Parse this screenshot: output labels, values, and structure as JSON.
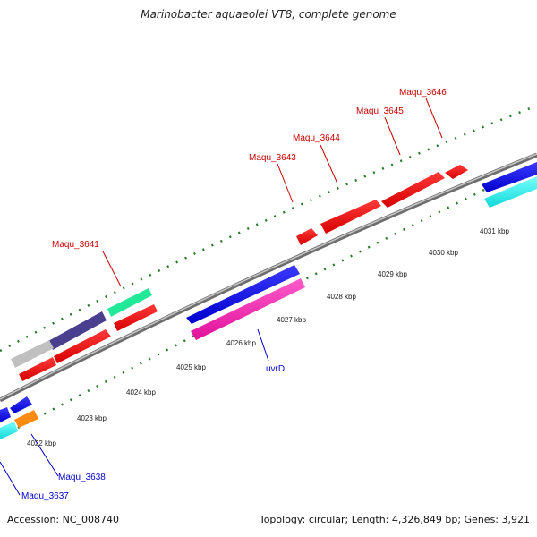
{
  "title": "Marinobacter aquaeolei VT8, complete genome",
  "footer": {
    "accession": "Accession: NC_008740",
    "summary": "Topology: circular; Length: 4,326,849 bp; Genes: 3,921"
  },
  "colors": {
    "forward_label": "#cc0000",
    "reverse_label": "#0000cc",
    "backbone": "#888888",
    "ticks": "#2a7a2a"
  },
  "ruler_labels": [
    "4022 kbp",
    "4023 kbp",
    "4024 kbp",
    "4025 kbp",
    "4026 kbp",
    "4027 kbp",
    "4028 kbp",
    "4029 kbp",
    "4030 kbp",
    "4031 kbp"
  ],
  "gene_labels": {
    "forward": [
      "Maqu_3641",
      "Maqu_3643",
      "Maqu_3644",
      "Maqu_3645",
      "Maqu_3646"
    ],
    "reverse": [
      "uvrD",
      "Maqu_3638",
      "Maqu_3637"
    ]
  }
}
